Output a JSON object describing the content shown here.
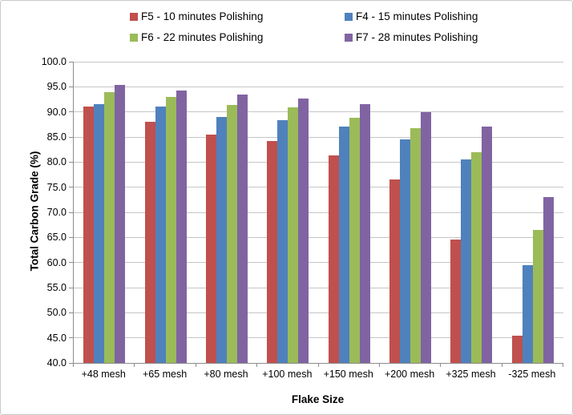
{
  "chart_data": {
    "type": "bar",
    "title": "",
    "xlabel": "Flake Size",
    "ylabel": "Total Carbon Grade (%)",
    "ylim": [
      40.0,
      100.0
    ],
    "ytick_step": 5.0,
    "ytick_decimals": 1,
    "grid": true,
    "legend_position": "top",
    "categories": [
      "+48 mesh",
      "+65 mesh",
      "+80 mesh",
      "+100 mesh",
      "+150 mesh",
      "+200 mesh",
      "+325 mesh",
      "-325 mesh"
    ],
    "series": [
      {
        "name": "F5 - 10 minutes Polishing",
        "color": "#C0504D",
        "values": [
          91.0,
          88.0,
          85.5,
          84.2,
          81.3,
          76.5,
          64.5,
          45.5
        ]
      },
      {
        "name": "F4 - 15 minutes Polishing",
        "color": "#4F81BD",
        "values": [
          91.5,
          91.0,
          89.0,
          88.3,
          87.0,
          84.5,
          80.5,
          59.5
        ]
      },
      {
        "name": "F6 - 22 minutes Polishing",
        "color": "#9BBB59",
        "values": [
          94.0,
          93.0,
          91.4,
          90.9,
          88.9,
          86.8,
          82.0,
          66.5
        ]
      },
      {
        "name": "F7 - 28 minutes Polishing",
        "color": "#8064A2",
        "values": [
          95.3,
          94.3,
          93.5,
          92.6,
          91.5,
          90.0,
          87.0,
          73.0
        ]
      }
    ],
    "colors": {
      "gridline": "#c6c6c6",
      "axis_line": "#8c8c8c",
      "text": "#000000"
    }
  }
}
